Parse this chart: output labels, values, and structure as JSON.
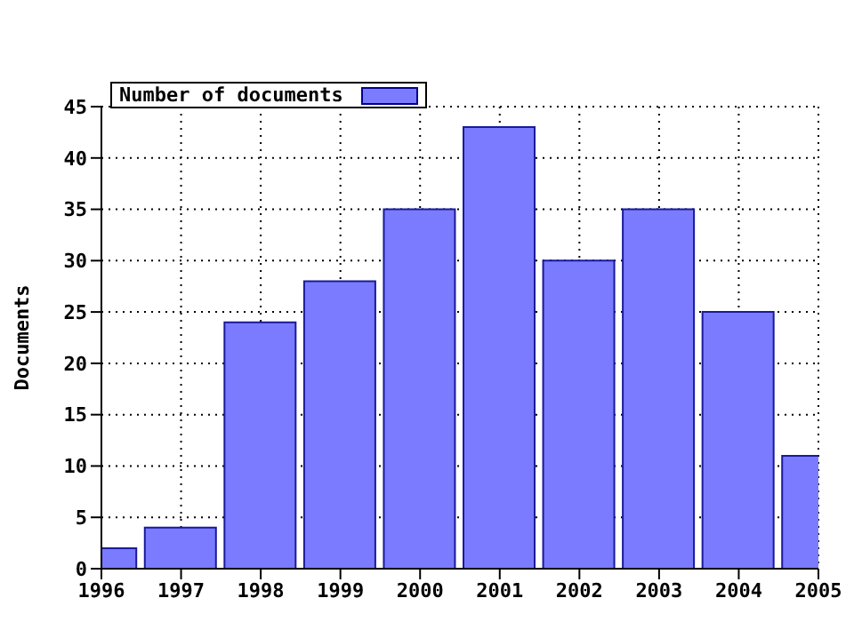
{
  "chart_data": {
    "type": "bar",
    "ylabel": "Documents",
    "x": [
      1996,
      1997,
      1998,
      1999,
      2000,
      2001,
      2002,
      2003,
      2004,
      2005
    ],
    "series": [
      {
        "name": "Number of documents",
        "color": "#7b7bff",
        "values": [
          2,
          4,
          24,
          28,
          35,
          43,
          30,
          35,
          25,
          11
        ]
      }
    ],
    "xlim": [
      1996,
      2005
    ],
    "xticks": [
      1996,
      1997,
      1998,
      1999,
      2000,
      2001,
      2002,
      2003,
      2004,
      2005
    ],
    "ylim": [
      0,
      45
    ],
    "yticks": [
      0,
      5,
      10,
      15,
      20,
      25,
      30,
      35,
      40,
      45
    ],
    "grid": true,
    "legend": "top left"
  }
}
